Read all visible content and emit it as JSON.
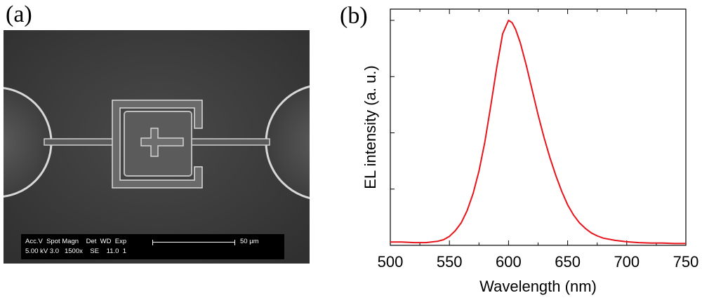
{
  "figure": {
    "panel_a_label": "(a)",
    "panel_b_label": "(b)"
  },
  "sem": {
    "databar_row1": "Acc.V  Spot Magn    Det  WD  Exp",
    "databar_row2": "5.00 kV 3.0   1500x    SE    11.0  1",
    "scale_label": "50 μm"
  },
  "chart_data": {
    "type": "line",
    "xlabel": "Wavelength (nm)",
    "ylabel": "EL intensity (a. u.)",
    "xlim": [
      500,
      750
    ],
    "ylim": [
      0,
      1.05
    ],
    "x_ticks": [
      500,
      550,
      600,
      650,
      700,
      750
    ],
    "y_ticks_labeled": false,
    "grid": false,
    "series": [
      {
        "color": "#e8141b",
        "x": [
          500,
          510,
          520,
          530,
          540,
          545,
          550,
          555,
          560,
          565,
          570,
          575,
          580,
          585,
          590,
          595,
          600,
          603,
          606,
          610,
          615,
          620,
          625,
          630,
          635,
          640,
          645,
          650,
          655,
          660,
          665,
          670,
          675,
          680,
          690,
          700,
          710,
          720,
          730,
          740,
          750
        ],
        "y": [
          0.015,
          0.015,
          0.012,
          0.012,
          0.018,
          0.025,
          0.04,
          0.065,
          0.1,
          0.155,
          0.23,
          0.33,
          0.46,
          0.62,
          0.79,
          0.94,
          1.0,
          0.99,
          0.96,
          0.9,
          0.8,
          0.69,
          0.58,
          0.48,
          0.39,
          0.31,
          0.24,
          0.18,
          0.135,
          0.1,
          0.075,
          0.055,
          0.042,
          0.032,
          0.022,
          0.016,
          0.012,
          0.01,
          0.01,
          0.008,
          0.008
        ]
      }
    ]
  }
}
